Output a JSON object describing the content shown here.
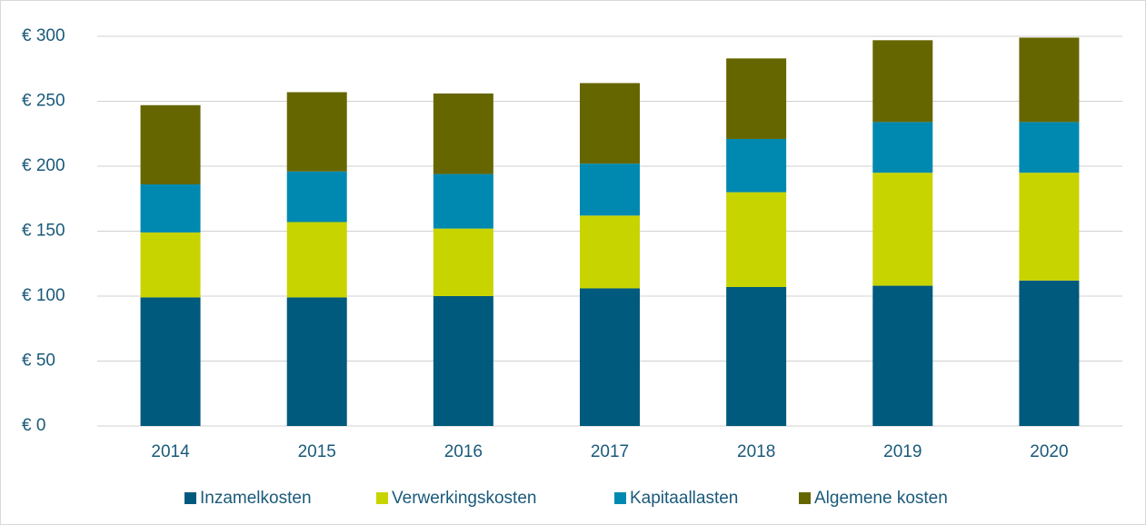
{
  "chart_data": {
    "type": "stacked_bar",
    "categories": [
      "2014",
      "2015",
      "2016",
      "2017",
      "2018",
      "2019",
      "2020"
    ],
    "series": [
      {
        "name": "Inzamelkosten",
        "color": "#005a7d",
        "values": [
          99,
          99,
          100,
          106,
          107,
          108,
          112
        ]
      },
      {
        "name": "Verwerkingskosten",
        "color": "#c8d400",
        "values": [
          50,
          58,
          52,
          56,
          73,
          87,
          83
        ]
      },
      {
        "name": "Kapitaallasten",
        "color": "#0089b0",
        "values": [
          37,
          39,
          42,
          40,
          41,
          39,
          39
        ]
      },
      {
        "name": "Algemene kosten",
        "color": "#666600",
        "values": [
          61,
          61,
          62,
          62,
          62,
          63,
          65
        ]
      }
    ],
    "ylim": [
      0,
      300
    ],
    "yticks": [
      {
        "value": 0,
        "label": "€ 0"
      },
      {
        "value": 50,
        "label": "€ 50"
      },
      {
        "value": 100,
        "label": "€ 100"
      },
      {
        "value": 150,
        "label": "€ 150"
      },
      {
        "value": 200,
        "label": "€ 200"
      },
      {
        "value": 250,
        "label": "€ 250"
      },
      {
        "value": 300,
        "label": "€ 300"
      }
    ],
    "grid": true,
    "legend": "bottom"
  }
}
